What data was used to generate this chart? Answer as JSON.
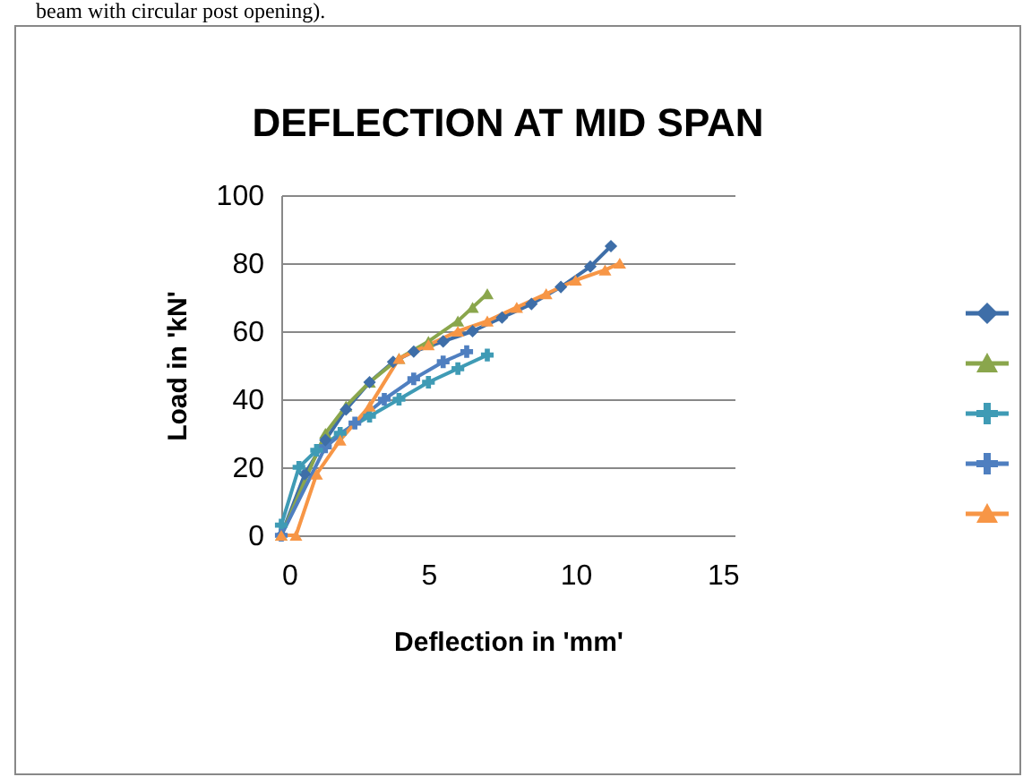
{
  "chart_data": {
    "type": "line",
    "title": "DEFLECTION AT MID SPAN",
    "xlabel": "Deflection in 'mm'",
    "ylabel": "Load in 'kN'",
    "annotations": [
      "beam with circular post opening)."
    ],
    "xlim": [
      0,
      15.4
    ],
    "ylim": [
      0,
      100
    ],
    "xticks": [
      0,
      5,
      10,
      15
    ],
    "yticks": [
      0,
      20,
      40,
      60,
      80,
      100
    ],
    "grid": "y",
    "series": [
      {
        "color": "#3e6ea8",
        "marker": "diamond",
        "x": [
          0,
          0.8,
          1.5,
          2.2,
          3,
          3.8,
          4.5,
          5.5,
          6.5,
          7.5,
          8.5,
          9.5,
          10.5,
          11.2
        ],
        "values": [
          0,
          18,
          28,
          37,
          45,
          51,
          54,
          57,
          60,
          64,
          68,
          73,
          79,
          85
        ]
      },
      {
        "color": "#8aa64c",
        "marker": "triangle",
        "x": [
          0,
          1.5,
          2.2,
          3,
          4,
          5,
          6,
          6.5,
          7
        ],
        "values": [
          0,
          30,
          38,
          45,
          52,
          57,
          63,
          67,
          71
        ]
      },
      {
        "color": "#3f9bb5",
        "marker": "cross",
        "x": [
          0,
          0.6,
          1.2,
          2,
          3,
          4,
          5,
          6,
          7
        ],
        "values": [
          3,
          20,
          25,
          30,
          35,
          40,
          45,
          49,
          53
        ]
      },
      {
        "color": "#4f7fc0",
        "marker": "cross",
        "x": [
          0,
          1.5,
          2.5,
          3.5,
          4.5,
          5.5,
          6.3
        ],
        "values": [
          0,
          26,
          33,
          40,
          46,
          51,
          54
        ]
      },
      {
        "color": "#f79646",
        "marker": "triangle",
        "x": [
          0,
          0.5,
          1.2,
          2,
          3,
          4,
          5,
          6,
          7,
          8,
          9,
          10,
          11,
          11.5
        ],
        "values": [
          0,
          0,
          18,
          28,
          38,
          52,
          56,
          60,
          63,
          67,
          71,
          75,
          78,
          80
        ]
      }
    ]
  }
}
